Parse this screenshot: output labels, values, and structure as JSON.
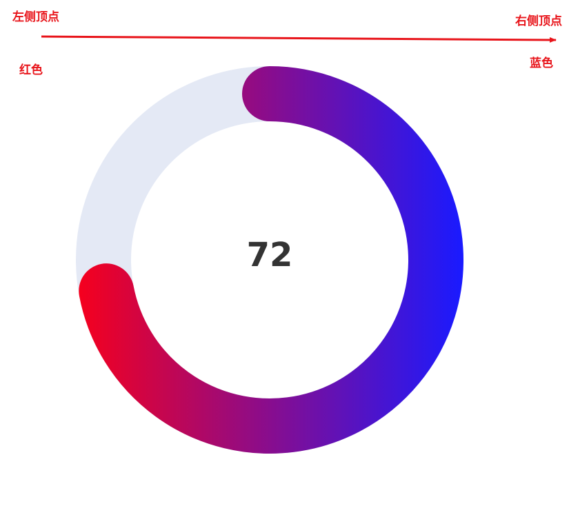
{
  "annotations": {
    "left_vertex": "左侧顶点",
    "right_vertex": "右侧顶点",
    "start_color_label": "红色",
    "end_color_label": "蓝色"
  },
  "colors": {
    "annotation": "#e8141a",
    "track": "#e4e9f5",
    "gradient_start": "#f5001e",
    "gradient_end": "#1a1aff",
    "center_text": "#333333"
  },
  "chart_data": {
    "type": "gauge",
    "value": 72,
    "max": 100,
    "center_label": "72",
    "gradient_direction": "left-to-right",
    "rounded_caps": true
  }
}
